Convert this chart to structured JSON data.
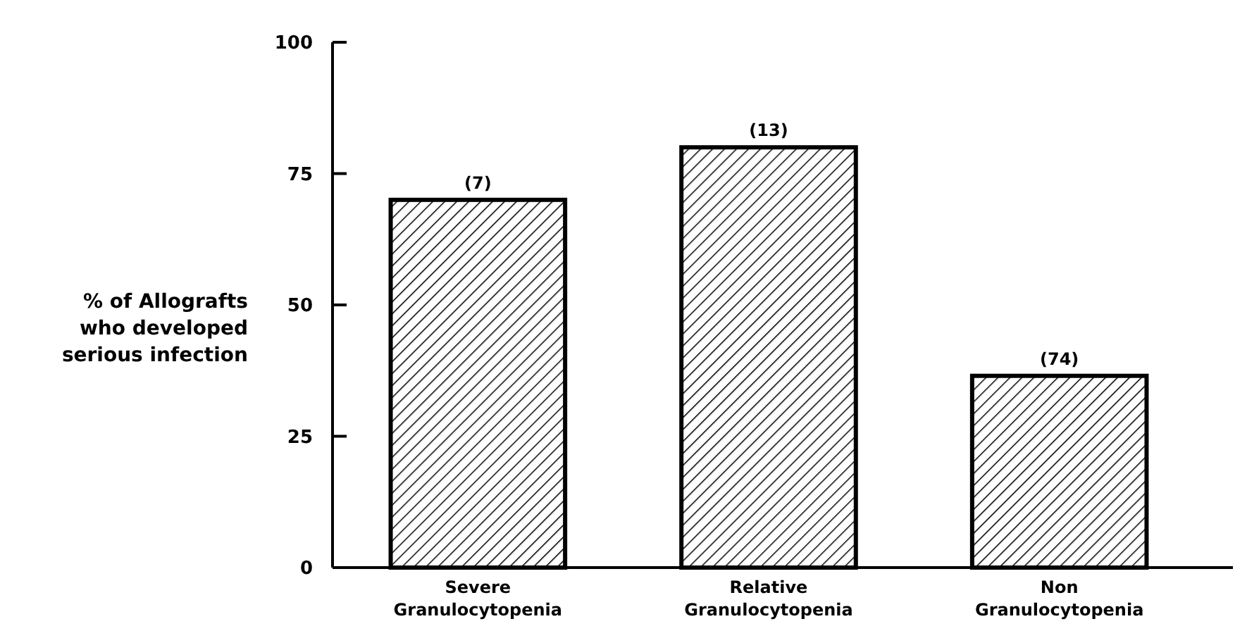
{
  "chart_data": {
    "type": "bar",
    "ylabel": "% of Allografts\nwho developed\nserious infection",
    "categories": [
      "Severe\nGranulocytopenia",
      "Relative\nGranulocytopenia",
      "Non\nGranulocytopenia"
    ],
    "values": [
      70,
      80,
      36.5
    ],
    "color": "#000000",
    "ylim": [
      0,
      100
    ],
    "yticks": [
      0,
      25,
      50,
      75,
      100
    ],
    "annotations": [
      {
        "text": "(7)",
        "x": "Severe\nGranulocytopenia",
        "y": 70
      },
      {
        "text": "(13)",
        "x": "Relative\nGranulocytopenia",
        "y": 80
      },
      {
        "text": "(74)",
        "x": "Non\nGranulocytopenia",
        "y": 36.5
      }
    ]
  }
}
